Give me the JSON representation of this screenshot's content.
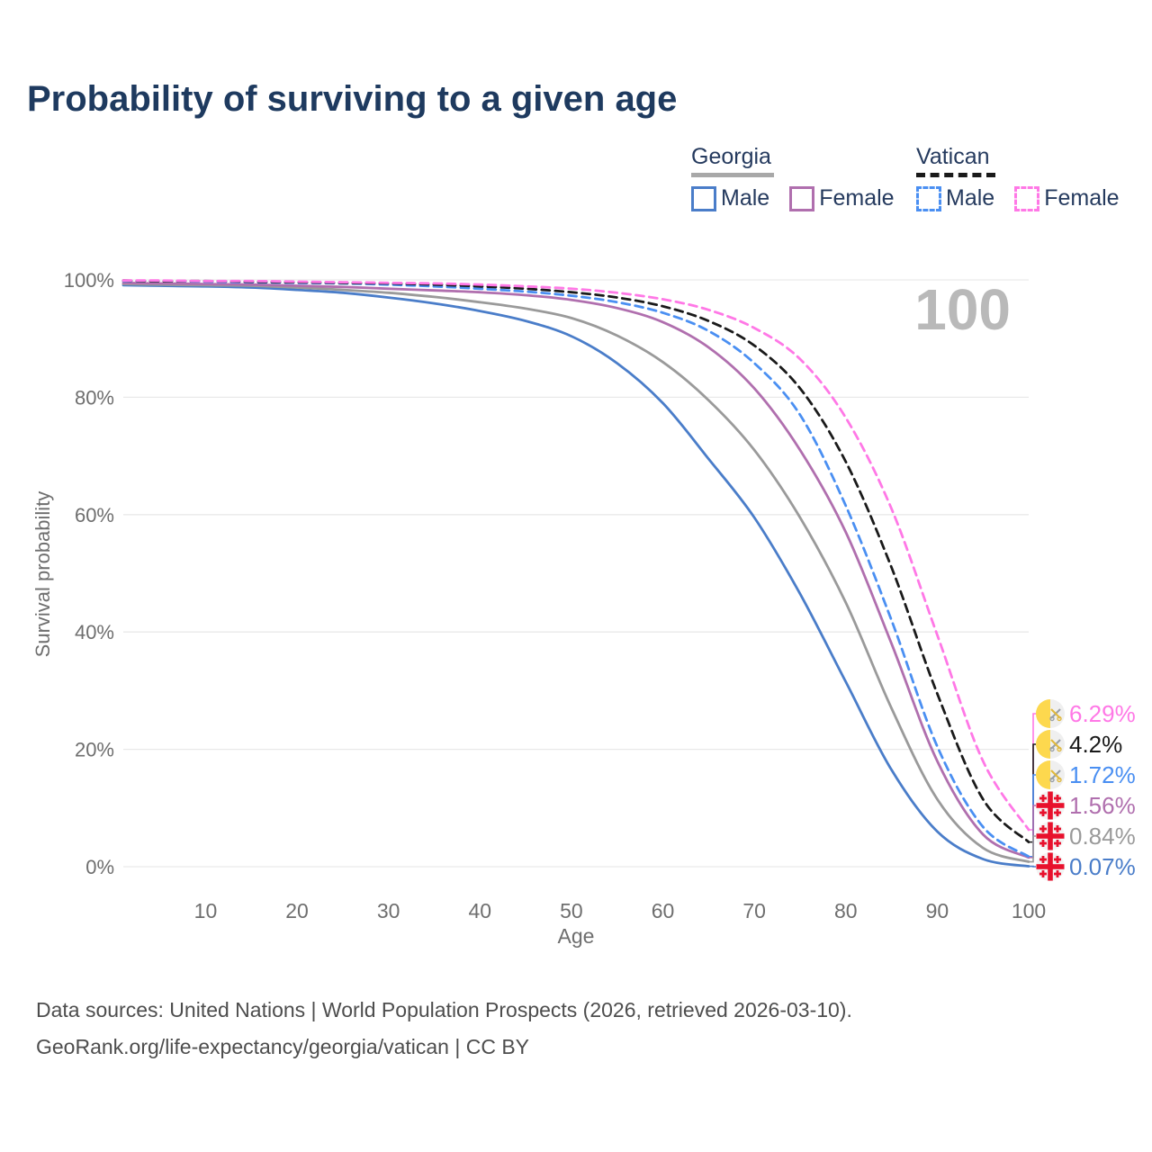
{
  "title": "Probability of surviving to a given age",
  "watermark": "100",
  "legend": {
    "groups": [
      {
        "label": "Georgia",
        "line_style": "solid",
        "underline_color": "#a8a8a8",
        "items": [
          {
            "label": "Male",
            "color": "#4a7dc9"
          },
          {
            "label": "Female",
            "color": "#b06fae"
          }
        ]
      },
      {
        "label": "Vatican",
        "line_style": "dashed",
        "underline_color": "#1a1a1a",
        "items": [
          {
            "label": "Male",
            "color": "#4a8ff2"
          },
          {
            "label": "Female",
            "color": "#ff78e6"
          }
        ]
      }
    ]
  },
  "chart_data": {
    "type": "line",
    "title": "Probability of surviving to a given age",
    "xlabel": "Age",
    "ylabel": "Survival probability",
    "xlim": [
      1,
      100
    ],
    "ylim": [
      0,
      100
    ],
    "grid": true,
    "x_ticks": [
      10,
      20,
      30,
      40,
      50,
      60,
      70,
      80,
      90,
      100
    ],
    "y_ticks": [
      {
        "pct": 0,
        "label": "0%"
      },
      {
        "pct": 20,
        "label": "20%"
      },
      {
        "pct": 40,
        "label": "40%"
      },
      {
        "pct": 60,
        "label": "60%"
      },
      {
        "pct": 80,
        "label": "80%"
      },
      {
        "pct": 100,
        "label": "100%"
      }
    ],
    "x": [
      1,
      5,
      10,
      15,
      20,
      25,
      30,
      35,
      40,
      45,
      50,
      55,
      60,
      65,
      70,
      75,
      80,
      85,
      90,
      95,
      100
    ],
    "series": [
      {
        "key": "georgia-male",
        "name": "Georgia male",
        "flag": "georgia",
        "color": "#4a7dc9",
        "dashed": false,
        "end_label": "0.07%",
        "values": [
          99.1,
          99.0,
          98.9,
          98.7,
          98.3,
          97.8,
          97.0,
          96.0,
          94.7,
          93.0,
          90.4,
          85.8,
          79.0,
          69.5,
          59.5,
          46.5,
          31.5,
          16.5,
          6.0,
          1.3,
          0.07
        ]
      },
      {
        "key": "georgia-both",
        "name": "Georgia both sexes",
        "flag": "georgia",
        "color": "#9a9a9a",
        "dashed": false,
        "end_label": "0.84%",
        "values": [
          99.3,
          99.2,
          99.1,
          99.0,
          98.7,
          98.3,
          97.8,
          97.1,
          96.2,
          95.1,
          93.5,
          90.5,
          86.0,
          79.5,
          71.0,
          59.5,
          45.0,
          27.0,
          11.5,
          3.2,
          0.84
        ]
      },
      {
        "key": "georgia-female",
        "name": "Georgia female",
        "flag": "georgia",
        "color": "#b06fae",
        "dashed": false,
        "end_label": "1.56%",
        "values": [
          99.5,
          99.4,
          99.3,
          99.2,
          99.0,
          98.8,
          98.5,
          98.2,
          97.9,
          97.4,
          96.6,
          95.2,
          92.8,
          88.5,
          81.5,
          71.0,
          57.0,
          38.0,
          18.0,
          5.5,
          1.56
        ]
      },
      {
        "key": "vatican-male",
        "name": "Vatican male",
        "flag": "vatican",
        "color": "#4a8ff2",
        "dashed": true,
        "end_label": "1.72%",
        "values": [
          99.8,
          99.8,
          99.7,
          99.6,
          99.5,
          99.4,
          99.2,
          98.9,
          98.5,
          98.0,
          97.3,
          96.2,
          94.4,
          91.3,
          85.8,
          77.0,
          61.5,
          42.0,
          20.5,
          6.8,
          1.72
        ]
      },
      {
        "key": "vatican-both",
        "name": "Vatican both sexes",
        "flag": "vatican",
        "color": "#1a1a1a",
        "dashed": true,
        "end_label": "4.2%",
        "values": [
          99.9,
          99.8,
          99.8,
          99.7,
          99.6,
          99.5,
          99.4,
          99.2,
          98.9,
          98.5,
          97.9,
          97.0,
          95.5,
          93.0,
          88.8,
          81.5,
          69.0,
          51.0,
          29.5,
          11.5,
          4.2
        ]
      },
      {
        "key": "vatican-female",
        "name": "Vatican female",
        "flag": "vatican",
        "color": "#ff78e6",
        "dashed": true,
        "end_label": "6.29%",
        "values": [
          99.9,
          99.9,
          99.8,
          99.8,
          99.7,
          99.6,
          99.5,
          99.4,
          99.2,
          98.9,
          98.5,
          97.8,
          96.7,
          94.9,
          91.8,
          86.5,
          76.5,
          61.0,
          39.5,
          18.0,
          6.29
        ]
      }
    ]
  },
  "footer": {
    "line1": "Data sources: United Nations | World Population Prospects (2026, retrieved 2026-03-10).",
    "line2": "GeoRank.org/life-expectancy/georgia/vatican | CC BY"
  }
}
